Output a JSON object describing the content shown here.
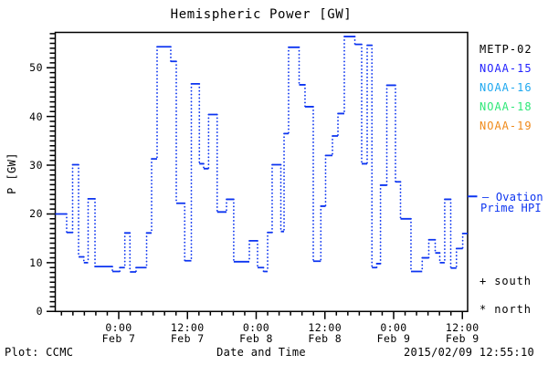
{
  "colors": {
    "background": "#ffffff",
    "axis": "#000000",
    "line_blue": "#0c34f0"
  },
  "chart_data": {
    "type": "line",
    "subtype": "step",
    "title": "Hemispheric Power [GW]",
    "ylabel": "P [GW]",
    "xlabel": "Date and Time",
    "ylim": [
      0,
      57.25
    ],
    "xlim_hours": [
      0,
      72
    ],
    "x_window": "Feb 6 ~13:00 to Feb 9 ~13:00, 2015",
    "grid": "off",
    "y_major_ticks": [
      0,
      10,
      20,
      30,
      40,
      50
    ],
    "y_minor_step_gw": 1,
    "x_major_ticks": [
      {
        "t": 11.083,
        "line1": "0:00",
        "line2": "Feb 7"
      },
      {
        "t": 23.083,
        "line1": "12:00",
        "line2": "Feb 7"
      },
      {
        "t": 35.083,
        "line1": "0:00",
        "line2": "Feb 8"
      },
      {
        "t": 47.083,
        "line1": "12:00",
        "line2": "Feb 8"
      },
      {
        "t": 59.083,
        "line1": "0:00",
        "line2": "Feb 9"
      },
      {
        "t": 71.083,
        "line1": "12:00",
        "line2": "Feb 9"
      }
    ],
    "x_minor_first_h": 1.083,
    "x_minor_step_h": 2,
    "series": [
      {
        "name": "Ovation Prime HPI",
        "color": "#0c34f0",
        "style": "solid horizontal steps, dotted vertical connectors",
        "break_hours": [
          0.0,
          1.99,
          3.03,
          4.07,
          4.99,
          5.74,
          6.94,
          9.97,
          11.27,
          12.15,
          13.04,
          14.11,
          15.95,
          16.82,
          17.78,
          20.17,
          21.13,
          22.6,
          23.76,
          25.16,
          25.91,
          26.77,
          28.27,
          29.9,
          31.16,
          33.89,
          35.32,
          36.36,
          37.08,
          37.87,
          39.39,
          39.95,
          40.74,
          42.58,
          43.61,
          45.05,
          46.37,
          47.2,
          48.4,
          49.36,
          50.47,
          52.31,
          53.5,
          54.46,
          55.29,
          56.13,
          56.79,
          57.89,
          59.4,
          60.28,
          62.11,
          64.07,
          65.22,
          66.34,
          67.14,
          68.0,
          69.05,
          70.05,
          71.14,
          72.0
        ],
        "values_gw": [
          20.0,
          16.2,
          30.1,
          11.2,
          10.0,
          23.1,
          9.2,
          8.2,
          9.0,
          16.1,
          8.1,
          9.0,
          16.1,
          31.3,
          54.3,
          51.3,
          22.2,
          10.4,
          46.7,
          30.3,
          29.3,
          40.4,
          20.4,
          23.0,
          10.2,
          14.5,
          9.0,
          8.2,
          16.2,
          30.1,
          16.4,
          36.5,
          54.2,
          46.5,
          42.0,
          10.3,
          21.6,
          32.0,
          36.0,
          40.6,
          56.4,
          54.8,
          30.3,
          54.6,
          9.0,
          9.8,
          25.9,
          46.4,
          26.6,
          19.0,
          8.2,
          11.0,
          14.7,
          12.0,
          10.0,
          23.0,
          8.9,
          12.9,
          16.0
        ]
      }
    ],
    "current_marker": {
      "value_gw": 23.6,
      "color": "#0c34f0"
    }
  },
  "legend": {
    "entries": [
      {
        "label": "METP-02",
        "color": "#000000"
      },
      {
        "label": "NOAA-15",
        "color": "#2222ff"
      },
      {
        "label": "NOAA-16",
        "color": "#1ea8f0"
      },
      {
        "label": "NOAA-18",
        "color": "#2ee878"
      },
      {
        "label": "NOAA-19",
        "color": "#f08a1a"
      }
    ]
  },
  "annotations": {
    "ovation_line1": "– Ovation",
    "ovation_line2": "Prime HPI",
    "south": "+ south",
    "north": "* north"
  },
  "footer": {
    "left": "Plot: CCMC",
    "right": "2015/02/09 12:55:10"
  }
}
